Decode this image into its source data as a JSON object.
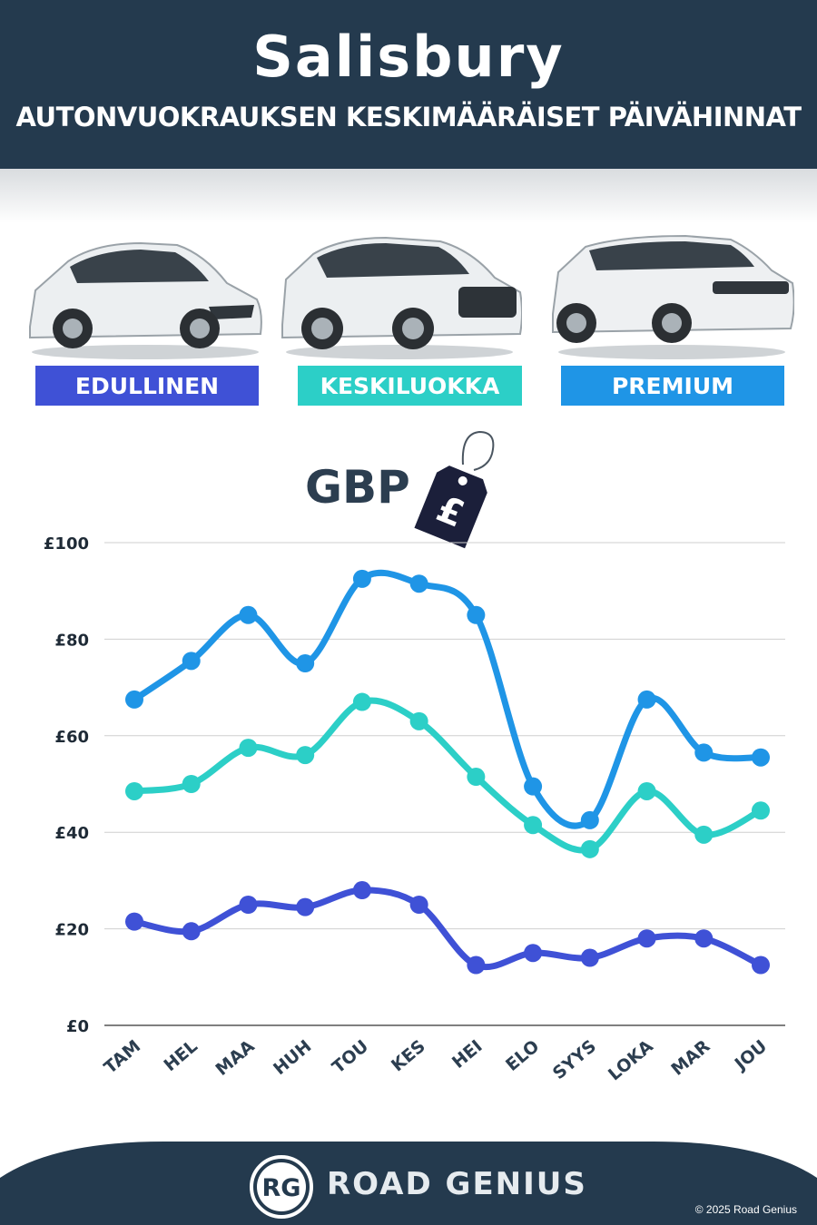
{
  "header": {
    "title": "Salisbury",
    "subtitle": "AUTONVUOKRAUKSEN KESKIMÄÄRÄISET PÄIVÄHINNAT"
  },
  "categories": [
    {
      "label": "EDULLINEN",
      "color": "#3f51d6"
    },
    {
      "label": "KESKILUOKKA",
      "color": "#2ccfc7"
    },
    {
      "label": "PREMIUM",
      "color": "#1f95e6"
    }
  ],
  "currency_label": "GBP",
  "currency_icon": "price-tag-pound-icon",
  "chart_data": {
    "type": "line",
    "categories": [
      "TAM",
      "HEL",
      "MAA",
      "HUH",
      "TOU",
      "KES",
      "HEI",
      "ELO",
      "SYYS",
      "LOKA",
      "MAR",
      "JOU"
    ],
    "y_ticks": [
      "£0",
      "£20",
      "£40",
      "£60",
      "£80",
      "£100"
    ],
    "ylim": [
      0,
      100
    ],
    "grid": true,
    "series": [
      {
        "name": "PREMIUM",
        "color": "#1f95e6",
        "values": [
          67.5,
          75.5,
          85,
          75,
          92.5,
          91.5,
          85,
          49.5,
          42.5,
          67.5,
          56.5,
          55.5
        ]
      },
      {
        "name": "KESKILUOKKA",
        "color": "#2ccfc7",
        "values": [
          48.5,
          50,
          57.5,
          56,
          67,
          63,
          51.5,
          41.5,
          36.5,
          48.5,
          39.5,
          44.5
        ]
      },
      {
        "name": "EDULLINEN",
        "color": "#3f51d6",
        "values": [
          21.5,
          19.5,
          25,
          24.5,
          28,
          25,
          12.5,
          15,
          14,
          18,
          18,
          12.5
        ]
      }
    ]
  },
  "footer": {
    "logo_text": "RG",
    "brand": "ROAD GENIUS",
    "copyright": "© 2025 Road Genius",
    "background": "#243a4e"
  }
}
